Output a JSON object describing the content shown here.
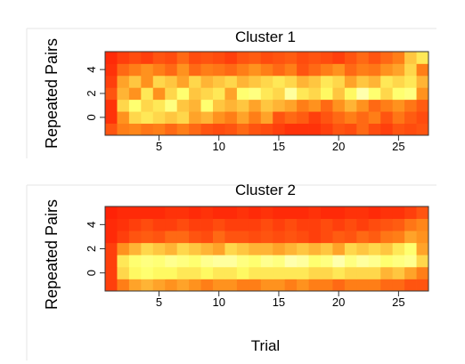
{
  "chart_data": [
    {
      "type": "heatmap",
      "title": "Cluster 1",
      "ylabel": "Repeated Pairs",
      "xlabel": "",
      "x_ticks": [
        5,
        10,
        15,
        20,
        25
      ],
      "y_ticks": [
        0,
        2,
        4
      ],
      "xlim": [
        0.5,
        27.5
      ],
      "ylim": [
        -1.5,
        5.5
      ],
      "n_cols": 27,
      "rows_bottom_to_top": [
        -1,
        0,
        1,
        2,
        3,
        4,
        5
      ],
      "color_scale": [
        "#ff0000",
        "#ff8c1a",
        "#ffff66",
        "#ffffcc"
      ],
      "z": [
        [
          0.2,
          0.3,
          0.32,
          0.28,
          0.3,
          0.25,
          0.3,
          0.25,
          0.2,
          0.18,
          0.2,
          0.25,
          0.2,
          0.18,
          0.15,
          0.12,
          0.12,
          0.12,
          0.15,
          0.2,
          0.18,
          0.25,
          0.18,
          0.15,
          0.2,
          0.18,
          0.2
        ],
        [
          0.12,
          0.35,
          0.55,
          0.6,
          0.55,
          0.5,
          0.55,
          0.4,
          0.45,
          0.35,
          0.3,
          0.4,
          0.3,
          0.4,
          0.2,
          0.25,
          0.22,
          0.15,
          0.2,
          0.25,
          0.3,
          0.25,
          0.3,
          0.2,
          0.28,
          0.22,
          0.18
        ],
        [
          0.12,
          0.55,
          0.7,
          0.55,
          0.6,
          0.75,
          0.5,
          0.45,
          0.7,
          0.5,
          0.45,
          0.5,
          0.4,
          0.5,
          0.45,
          0.4,
          0.3,
          0.35,
          0.25,
          0.35,
          0.45,
          0.35,
          0.25,
          0.3,
          0.35,
          0.28,
          0.22
        ],
        [
          0.2,
          0.45,
          0.35,
          0.6,
          0.35,
          0.55,
          0.7,
          0.5,
          0.55,
          0.6,
          0.4,
          0.7,
          0.75,
          0.6,
          0.55,
          0.85,
          0.6,
          0.55,
          0.65,
          0.5,
          0.65,
          0.9,
          0.7,
          0.55,
          0.7,
          0.75,
          0.35
        ],
        [
          0.15,
          0.4,
          0.5,
          0.35,
          0.55,
          0.5,
          0.4,
          0.55,
          0.45,
          0.5,
          0.55,
          0.45,
          0.5,
          0.55,
          0.6,
          0.55,
          0.45,
          0.5,
          0.6,
          0.55,
          0.4,
          0.5,
          0.45,
          0.6,
          0.55,
          0.6,
          0.45
        ],
        [
          0.12,
          0.25,
          0.3,
          0.35,
          0.3,
          0.25,
          0.35,
          0.25,
          0.3,
          0.28,
          0.25,
          0.3,
          0.35,
          0.3,
          0.25,
          0.3,
          0.2,
          0.25,
          0.3,
          0.35,
          0.25,
          0.3,
          0.28,
          0.35,
          0.4,
          0.55,
          0.3
        ],
        [
          0.1,
          0.15,
          0.18,
          0.15,
          0.2,
          0.18,
          0.25,
          0.18,
          0.2,
          0.18,
          0.15,
          0.2,
          0.22,
          0.18,
          0.2,
          0.22,
          0.18,
          0.2,
          0.18,
          0.15,
          0.2,
          0.25,
          0.2,
          0.25,
          0.3,
          0.5,
          0.6
        ]
      ]
    },
    {
      "type": "heatmap",
      "title": "Cluster 2",
      "ylabel": "Repeated Pairs",
      "xlabel": "Trial",
      "x_ticks": [
        5,
        10,
        15,
        20,
        25
      ],
      "y_ticks": [
        0,
        2,
        4
      ],
      "xlim": [
        0.5,
        27.5
      ],
      "ylim": [
        -1.5,
        5.5
      ],
      "n_cols": 27,
      "rows_bottom_to_top": [
        -1,
        0,
        1,
        2,
        3,
        4,
        5
      ],
      "color_scale": [
        "#ff0000",
        "#ff8c1a",
        "#ffff66",
        "#ffffcc"
      ],
      "z": [
        [
          0.15,
          0.3,
          0.4,
          0.45,
          0.4,
          0.35,
          0.4,
          0.35,
          0.3,
          0.35,
          0.35,
          0.3,
          0.3,
          0.35,
          0.35,
          0.3,
          0.35,
          0.3,
          0.3,
          0.25,
          0.3,
          0.3,
          0.3,
          0.25,
          0.25,
          0.2,
          0.2
        ],
        [
          0.15,
          0.55,
          0.65,
          0.7,
          0.65,
          0.65,
          0.6,
          0.6,
          0.65,
          0.6,
          0.6,
          0.65,
          0.6,
          0.6,
          0.6,
          0.6,
          0.6,
          0.55,
          0.55,
          0.6,
          0.55,
          0.55,
          0.55,
          0.45,
          0.5,
          0.4,
          0.3
        ],
        [
          0.15,
          0.6,
          0.7,
          0.75,
          0.72,
          0.8,
          0.75,
          0.7,
          0.8,
          0.85,
          0.85,
          0.75,
          0.7,
          0.8,
          0.75,
          0.9,
          0.85,
          0.7,
          0.75,
          0.9,
          0.75,
          0.85,
          0.8,
          0.7,
          0.75,
          0.8,
          0.55
        ],
        [
          0.15,
          0.35,
          0.45,
          0.55,
          0.5,
          0.45,
          0.55,
          0.5,
          0.45,
          0.4,
          0.55,
          0.5,
          0.45,
          0.45,
          0.4,
          0.45,
          0.5,
          0.45,
          0.5,
          0.4,
          0.55,
          0.5,
          0.55,
          0.5,
          0.6,
          0.7,
          0.4
        ],
        [
          0.1,
          0.15,
          0.2,
          0.22,
          0.2,
          0.25,
          0.25,
          0.2,
          0.18,
          0.25,
          0.2,
          0.2,
          0.18,
          0.2,
          0.18,
          0.2,
          0.18,
          0.15,
          0.18,
          0.22,
          0.2,
          0.25,
          0.22,
          0.28,
          0.3,
          0.4,
          0.35
        ],
        [
          0.1,
          0.12,
          0.15,
          0.18,
          0.15,
          0.15,
          0.18,
          0.15,
          0.15,
          0.18,
          0.15,
          0.15,
          0.15,
          0.18,
          0.15,
          0.18,
          0.15,
          0.15,
          0.18,
          0.15,
          0.18,
          0.15,
          0.18,
          0.2,
          0.22,
          0.28,
          0.32
        ],
        [
          0.08,
          0.1,
          0.1,
          0.1,
          0.1,
          0.12,
          0.12,
          0.1,
          0.12,
          0.1,
          0.1,
          0.12,
          0.1,
          0.12,
          0.1,
          0.1,
          0.1,
          0.12,
          0.1,
          0.1,
          0.12,
          0.12,
          0.1,
          0.12,
          0.12,
          0.15,
          0.2
        ]
      ]
    }
  ]
}
